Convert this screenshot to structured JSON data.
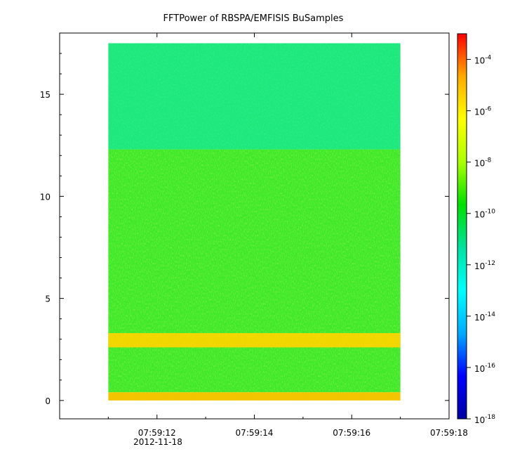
{
  "chart_data": {
    "type": "heatmap",
    "title": "FFTPower of RBSPA/EMFISIS  BuSamples",
    "xlabel": "",
    "ylabel": "",
    "x_tick_labels": [
      "07:59:12",
      "07:59:14",
      "07:59:16",
      "07:59:18"
    ],
    "x_sub_label": "2012-11-18",
    "x_range_seconds": [
      10.0,
      18.0
    ],
    "x_tick_seconds": [
      12,
      14,
      16,
      18
    ],
    "y_tick_labels": [
      "0",
      "5",
      "10",
      "15"
    ],
    "y_ticks": [
      0,
      5,
      10,
      15
    ],
    "ylim": [
      -0.9,
      18.0
    ],
    "data_extent": {
      "x_seconds": [
        11.0,
        17.0
      ],
      "y": [
        0.0,
        17.5
      ]
    },
    "colorbar": {
      "scale": "log",
      "range": [
        1e-18,
        0.001
      ],
      "tick_base": "10",
      "tick_exponents": [
        "-4",
        "-6",
        "-8",
        "-10",
        "-12",
        "-14",
        "-16",
        "-18"
      ],
      "tick_values": [
        0.0001,
        1e-06,
        1e-08,
        1e-10,
        1e-12,
        1e-14,
        1e-16,
        1e-18
      ],
      "colormap": [
        "#0000a0",
        "#0000ff",
        "#00aaff",
        "#00ffff",
        "#00e0a0",
        "#00e000",
        "#aaff00",
        "#ffff00",
        "#ffaa00",
        "#ff0000"
      ]
    },
    "bands": [
      {
        "y_range": [
          12.3,
          17.5
        ],
        "level_log10": -12.4,
        "color": "#1ee87a"
      },
      {
        "y_range": [
          0.4,
          12.3
        ],
        "level_log10": -10.5,
        "color": "#3de82b"
      },
      {
        "y_range": [
          2.6,
          3.3
        ],
        "level_log10": -8.0,
        "color": "#f0d800"
      },
      {
        "y_range": [
          0.0,
          0.4
        ],
        "level_log10": -8.2,
        "color": "#f2c400"
      }
    ],
    "grid": false,
    "legend": "colorbar-right"
  }
}
